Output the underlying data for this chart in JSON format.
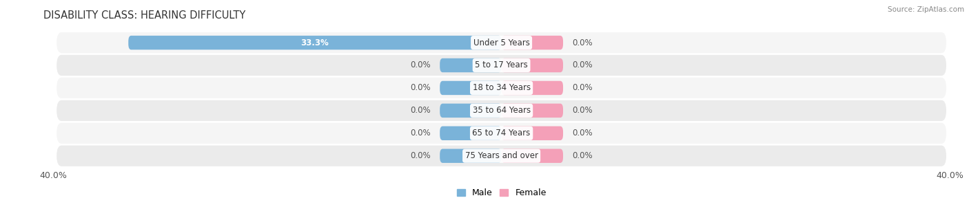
{
  "title": "DISABILITY CLASS: HEARING DIFFICULTY",
  "source": "Source: ZipAtlas.com",
  "categories": [
    "Under 5 Years",
    "5 to 17 Years",
    "18 to 34 Years",
    "35 to 64 Years",
    "65 to 74 Years",
    "75 Years and over"
  ],
  "male_values": [
    33.3,
    0.0,
    0.0,
    0.0,
    0.0,
    0.0
  ],
  "female_values": [
    0.0,
    0.0,
    0.0,
    0.0,
    0.0,
    0.0
  ],
  "male_color": "#7ab3d9",
  "female_color": "#f4a0b8",
  "axis_max": 40.0,
  "bar_height": 0.62,
  "small_bar_width": 5.5,
  "label_fontsize": 8.5,
  "title_fontsize": 10.5,
  "value_fontsize": 8.5,
  "bg_color": "#ffffff",
  "row_color_light": "#f5f5f5",
  "row_color_dark": "#ebebeb",
  "center_label_color": "#333333",
  "tick_label_fontsize": 9,
  "value_label_color": "#555555",
  "value_label_white": "#ffffff"
}
